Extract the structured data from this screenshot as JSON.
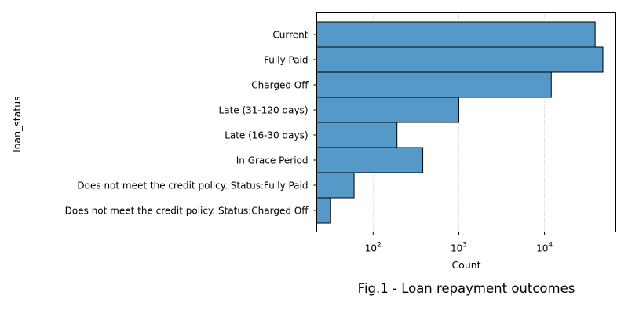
{
  "chart_data": {
    "type": "bar",
    "orientation": "horizontal",
    "x_scale": "log",
    "categories": [
      "Current",
      "Fully Paid",
      "Charged Off",
      "Late (31-120 days)",
      "Late (16-30 days)",
      "In Grace Period",
      "Does not meet the credit policy. Status:Fully Paid",
      "Does not meet the credit policy. Status:Charged Off"
    ],
    "values": [
      39000,
      48000,
      12000,
      1000,
      190,
      380,
      60,
      32
    ],
    "xlabel": "Count",
    "ylabel": "loan_status",
    "x_ticks": [
      {
        "value": 100,
        "base": "10",
        "exp": "2"
      },
      {
        "value": 1000,
        "base": "10",
        "exp": "3"
      },
      {
        "value": 10000,
        "base": "10",
        "exp": "4"
      }
    ],
    "xlim": [
      22,
      68000
    ],
    "grid": "x dotted",
    "legend": "none",
    "bar_color": "#5499c7",
    "edge_color": "#000000",
    "caption": "Fig.1 - Loan repayment outcomes"
  }
}
